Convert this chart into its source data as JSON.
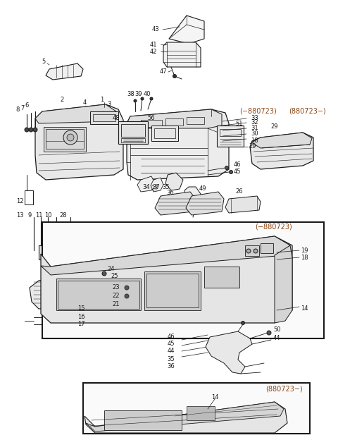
{
  "bg_color": "#ffffff",
  "fig_width": 4.8,
  "fig_height": 6.24,
  "dpi": 100,
  "orange": "#8B4513",
  "black": "#1a1a1a",
  "gray": "#555555"
}
